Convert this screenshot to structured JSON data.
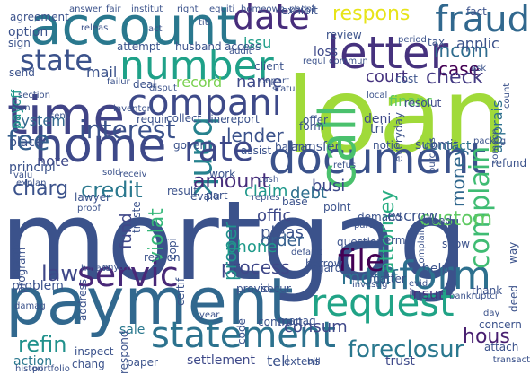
{
  "words": [
    {
      "text": "mortgag",
      "color": "#3b528b"
    },
    {
      "text": "loan",
      "color": "#a0da39"
    },
    {
      "text": "payment",
      "color": "#31688e"
    },
    {
      "text": "account",
      "color": "#2a788e"
    },
    {
      "text": "home",
      "color": "#3e4989"
    },
    {
      "text": "time",
      "color": "#414487"
    },
    {
      "text": "number",
      "color": "#1fa188"
    },
    {
      "text": "document",
      "color": "#3b528b"
    },
    {
      "text": "letter",
      "color": "#46327e"
    },
    {
      "text": "statement",
      "color": "#2c728e"
    },
    {
      "text": "request",
      "color": "#20a386"
    },
    {
      "text": "inform",
      "color": "#2d708e"
    },
    {
      "text": "call",
      "color": "#4ac16d"
    },
    {
      "text": "fraud",
      "color": "#31688e"
    },
    {
      "text": "date",
      "color": "#472d7b"
    },
    {
      "text": "bank",
      "color": "#26828e"
    },
    {
      "text": "compani",
      "color": "#3e4a89"
    },
    {
      "text": "state",
      "color": "#3b528b"
    },
    {
      "text": "rate",
      "color": "#3e4989"
    },
    {
      "text": "servic",
      "color": "#482878"
    },
    {
      "text": "fee",
      "color": "#355f8d"
    },
    {
      "text": "complain",
      "color": "#3fbc73"
    },
    {
      "text": "file",
      "color": "#440154"
    },
    {
      "text": "interest",
      "color": "#3b528b"
    },
    {
      "text": "respons",
      "color": "#e7e419"
    },
    {
      "text": "foreclosur",
      "color": "#2a788e"
    },
    {
      "text": "credit",
      "color": "#2a788e"
    },
    {
      "text": "amount",
      "color": "#472d7b"
    },
    {
      "text": "process",
      "color": "#3f4788"
    },
    {
      "text": "modif",
      "color": "#2c728e"
    },
    {
      "text": "refin",
      "color": "#21918c"
    },
    {
      "text": "hous",
      "color": "#481f70"
    },
    {
      "text": "incom",
      "color": "#2f6c8e"
    },
    {
      "text": "case",
      "color": "#440154"
    },
    {
      "text": "check",
      "color": "#443a83"
    },
    {
      "text": "court",
      "color": "#46337f"
    },
    {
      "text": "lender",
      "color": "#3b528b"
    },
    {
      "text": "law",
      "color": "#3f4788"
    },
    {
      "text": "charg",
      "color": "#3b528b"
    },
    {
      "text": "violat",
      "color": "#35b779"
    },
    {
      "text": "custom",
      "color": "#5ec962"
    },
    {
      "text": "attorney",
      "color": "#27ad81"
    },
    {
      "text": "money",
      "color": "#31688e"
    },
    {
      "text": "proper",
      "color": "#21918c"
    },
    {
      "text": "record",
      "color": "#7ad151"
    },
    {
      "text": "name",
      "color": "#3e4a89"
    },
    {
      "text": "consum",
      "color": "#3f4889"
    },
    {
      "text": "debt",
      "color": "#2e6e8e"
    },
    {
      "text": "busi",
      "color": "#3e4989"
    },
    {
      "text": "claim",
      "color": "#1f988b"
    },
    {
      "text": "pleas",
      "color": "#3b528b"
    },
    {
      "text": "order",
      "color": "#355f8d"
    },
    {
      "text": "phone",
      "color": "#1f9a8a"
    },
    {
      "text": "offic",
      "color": "#3e4989"
    },
    {
      "text": "fund",
      "color": "#3f4788"
    },
    {
      "text": "financ",
      "color": "#5ec962"
    },
    {
      "text": "contact",
      "color": "#2c728e"
    },
    {
      "text": "system",
      "color": "#31688e"
    },
    {
      "text": "mail",
      "color": "#3b528b"
    },
    {
      "text": "loss",
      "color": "#3e4989"
    },
    {
      "text": "applic",
      "color": "#3b528b"
    },
    {
      "text": "issu",
      "color": "#1f9e89"
    },
    {
      "text": "note",
      "color": "#3e4989"
    },
    {
      "text": "insur",
      "color": "#46327e"
    },
    {
      "text": "settlement",
      "color": "#3e4989"
    },
    {
      "text": "sale",
      "color": "#2a788e"
    },
    {
      "text": "action",
      "color": "#2a788e"
    },
    {
      "text": "escrow",
      "color": "#3b528b"
    },
    {
      "text": "help",
      "color": "#3b528b"
    },
    {
      "text": "payoff",
      "color": "#1f988b"
    },
    {
      "text": "apprais",
      "color": "#2d708e"
    },
    {
      "text": "tell",
      "color": "#3b528b"
    },
    {
      "text": "trust",
      "color": "#3e4989"
    },
    {
      "text": "deni",
      "color": "#3e4989"
    },
    {
      "text": "tri",
      "color": "#3b528b"
    },
    {
      "text": "resolut",
      "color": "#3e4989"
    },
    {
      "text": "cost",
      "color": "#3b528b"
    },
    {
      "text": "submit",
      "color": "#3b528b"
    },
    {
      "text": "transfer",
      "color": "#3b528b"
    },
    {
      "text": "notic",
      "color": "#3b528b"
    },
    {
      "text": "report",
      "color": "#3b528b"
    },
    {
      "text": "regard",
      "color": "#3b528b"
    },
    {
      "text": "question",
      "color": "#3b528b"
    },
    {
      "text": "term",
      "color": "#3b528b"
    },
    {
      "text": "matter",
      "color": "#3b528b"
    },
    {
      "text": "need",
      "color": "#3b528b"
    },
    {
      "text": "show",
      "color": "#3b528b"
    },
    {
      "text": "thank",
      "color": "#3b528b"
    },
    {
      "text": "concern",
      "color": "#3b528b"
    },
    {
      "text": "attach",
      "color": "#3b528b"
    },
    {
      "text": "chang",
      "color": "#3b528b"
    },
    {
      "text": "problem",
      "color": "#3b528b"
    },
    {
      "text": "program",
      "color": "#3b528b"
    },
    {
      "text": "practic",
      "color": "#3b528b"
    },
    {
      "text": "principl",
      "color": "#3b528b"
    },
    {
      "text": "place",
      "color": "#3b528b"
    },
    {
      "text": "balanc",
      "color": "#3b528b"
    },
    {
      "text": "base",
      "color": "#3b528b"
    },
    {
      "text": "work",
      "color": "#3b528b"
    },
    {
      "text": "assist",
      "color": "#3b528b"
    },
    {
      "text": "refund",
      "color": "#3b528b"
    },
    {
      "text": "refus",
      "color": "#3b528b"
    },
    {
      "text": "deal",
      "color": "#3b528b"
    },
    {
      "text": "client",
      "color": "#3b528b"
    },
    {
      "text": "tax",
      "color": "#3b528b"
    },
    {
      "text": "review",
      "color": "#3b528b"
    },
    {
      "text": "option",
      "color": "#3b528b"
    },
    {
      "text": "sign",
      "color": "#3b528b"
    },
    {
      "text": "send",
      "color": "#3b528b"
    },
    {
      "text": "agreement",
      "color": "#3b528b"
    },
    {
      "text": "attempt",
      "color": "#3b528b"
    },
    {
      "text": "husband",
      "color": "#3b528b"
    },
    {
      "text": "access",
      "color": "#3b528b"
    },
    {
      "text": "exhibit",
      "color": "#3b528b"
    },
    {
      "text": "fact",
      "color": "#3b528b"
    },
    {
      "text": "offer",
      "color": "#3b528b"
    },
    {
      "text": "form",
      "color": "#3b528b"
    },
    {
      "text": "requir",
      "color": "#3b528b"
    },
    {
      "text": "collect",
      "color": "#3b528b"
    },
    {
      "text": "line",
      "color": "#3b528b"
    },
    {
      "text": "govern",
      "color": "#3b528b"
    },
    {
      "text": "borrow",
      "color": "#3b528b"
    },
    {
      "text": "secur",
      "color": "#3b528b"
    },
    {
      "text": "manag",
      "color": "#3b528b"
    },
    {
      "text": "contract",
      "color": "#3b528b"
    },
    {
      "text": "code",
      "color": "#3b528b"
    },
    {
      "text": "inspect",
      "color": "#3b528b"
    },
    {
      "text": "respond",
      "color": "#3b528b"
    },
    {
      "text": "paper",
      "color": "#3b528b"
    },
    {
      "text": "extens",
      "color": "#3b528b"
    },
    {
      "text": "bill",
      "color": "#3b528b"
    },
    {
      "text": "transact",
      "color": "#3b528b"
    },
    {
      "text": "deed",
      "color": "#3b528b"
    },
    {
      "text": "provid",
      "color": "#3b528b"
    },
    {
      "text": "reason",
      "color": "#3b528b"
    },
    {
      "text": "copi",
      "color": "#3b528b"
    },
    {
      "text": "address",
      "color": "#3b528b"
    },
    {
      "text": "result",
      "color": "#3b528b"
    },
    {
      "text": "evalu",
      "color": "#3b528b"
    },
    {
      "text": "part",
      "color": "#3b528b"
    },
    {
      "text": "demand",
      "color": "#3b528b"
    },
    {
      "text": "parti",
      "color": "#3b528b"
    },
    {
      "text": "point",
      "color": "#3b528b"
    },
    {
      "text": "repres",
      "color": "#3b528b"
    },
    {
      "text": "cash",
      "color": "#3b528b"
    },
    {
      "text": "lawyer",
      "color": "#3b528b"
    },
    {
      "text": "proof",
      "color": "#3b528b"
    },
    {
      "text": "truste",
      "color": "#3b528b"
    },
    {
      "text": "default",
      "color": "#3b528b"
    },
    {
      "text": "anyth",
      "color": "#3b528b"
    },
    {
      "text": "harass",
      "color": "#3b528b"
    },
    {
      "text": "certif",
      "color": "#3b528b"
    },
    {
      "text": "bankruptci",
      "color": "#3b528b"
    },
    {
      "text": "investig",
      "color": "#3b528b"
    },
    {
      "text": "evid",
      "color": "#3b528b"
    },
    {
      "text": "year",
      "color": "#3b528b"
    },
    {
      "text": "damag",
      "color": "#3b528b"
    },
    {
      "text": "day",
      "color": "#3b528b"
    },
    {
      "text": "way",
      "color": "#3b528b"
    },
    {
      "text": "complaint",
      "color": "#3b528b"
    },
    {
      "text": "someon",
      "color": "#3b528b"
    },
    {
      "text": "purchas",
      "color": "#3b528b"
    },
    {
      "text": "packag",
      "color": "#3b528b"
    },
    {
      "text": "count",
      "color": "#3b528b"
    },
    {
      "text": "everyday",
      "color": "#3b528b"
    },
    {
      "text": "inventori",
      "color": "#3b528b"
    },
    {
      "text": "disput",
      "color": "#3b528b"
    },
    {
      "text": "failur",
      "color": "#3b528b"
    },
    {
      "text": "section",
      "color": "#3b528b"
    },
    {
      "text": "plan",
      "color": "#3b528b"
    },
    {
      "text": "valu",
      "color": "#3b528b"
    },
    {
      "text": "explan",
      "color": "#3b528b"
    },
    {
      "text": "histori",
      "color": "#3b528b"
    },
    {
      "text": "portfolio",
      "color": "#3b528b"
    },
    {
      "text": "answer",
      "color": "#3b528b"
    },
    {
      "text": "fair",
      "color": "#3b528b"
    },
    {
      "text": "institut",
      "color": "#3b528b"
    },
    {
      "text": "right",
      "color": "#3b528b"
    },
    {
      "text": "equiti",
      "color": "#3b528b"
    },
    {
      "text": "homeown",
      "color": "#3b528b"
    },
    {
      "text": "peopl",
      "color": "#3b528b"
    },
    {
      "text": "addit",
      "color": "#3b528b"
    },
    {
      "text": "depart",
      "color": "#3b528b"
    },
    {
      "text": "statu",
      "color": "#3b528b"
    },
    {
      "text": "regul",
      "color": "#3b528b"
    },
    {
      "text": "commun",
      "color": "#3b528b"
    },
    {
      "text": "period",
      "color": "#3b528b"
    },
    {
      "text": "ask",
      "color": "#3b528b"
    },
    {
      "text": "local",
      "color": "#3b528b"
    },
    {
      "text": "releas",
      "color": "#3b528b"
    },
    {
      "text": "act",
      "color": "#3b528b"
    },
    {
      "text": "titl",
      "color": "#3b528b"
    },
    {
      "text": "sold",
      "color": "#3b528b"
    },
    {
      "text": "receiv",
      "color": "#3b528b"
    },
    {
      "text": "sent",
      "color": "#3b528b"
    },
    {
      "text": "week",
      "color": "#3b528b"
    },
    {
      "text": "month",
      "color": "#3b528b"
    }
  ]
}
